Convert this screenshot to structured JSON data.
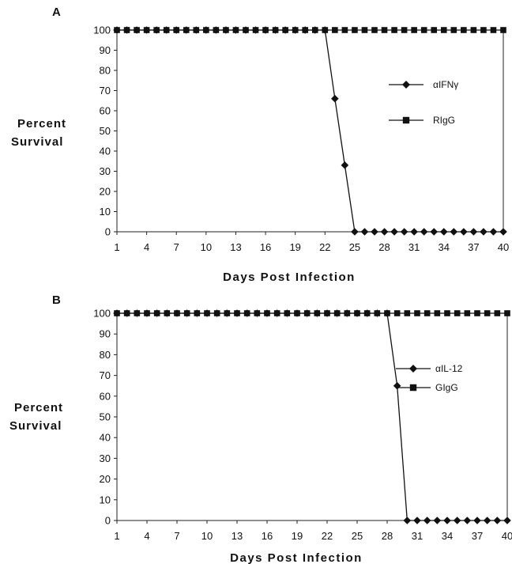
{
  "chart_data": [
    {
      "panel": "A",
      "type": "line",
      "xlabel": "Days Post Infection",
      "ylabel": [
        "Percent",
        "Survival"
      ],
      "xlim": [
        1,
        40
      ],
      "ylim": [
        0,
        100
      ],
      "xticks": [
        1,
        4,
        7,
        10,
        13,
        16,
        19,
        22,
        25,
        28,
        31,
        34,
        37,
        40
      ],
      "yticks": [
        0,
        10,
        20,
        30,
        40,
        50,
        60,
        70,
        80,
        90,
        100
      ],
      "legend_placement": "right",
      "series": [
        {
          "name": "αIFNγ",
          "marker": "diamond",
          "x": [
            1,
            2,
            3,
            4,
            5,
            6,
            7,
            8,
            9,
            10,
            11,
            12,
            13,
            14,
            15,
            16,
            17,
            18,
            19,
            20,
            21,
            22,
            23,
            24,
            25,
            26,
            27,
            28,
            29,
            30,
            31,
            32,
            33,
            34,
            35,
            36,
            37,
            38,
            39,
            40
          ],
          "y": [
            100,
            100,
            100,
            100,
            100,
            100,
            100,
            100,
            100,
            100,
            100,
            100,
            100,
            100,
            100,
            100,
            100,
            100,
            100,
            100,
            100,
            100,
            66,
            33,
            0,
            0,
            0,
            0,
            0,
            0,
            0,
            0,
            0,
            0,
            0,
            0,
            0,
            0,
            0,
            0
          ]
        },
        {
          "name": "RIgG",
          "marker": "square",
          "x": [
            1,
            2,
            3,
            4,
            5,
            6,
            7,
            8,
            9,
            10,
            11,
            12,
            13,
            14,
            15,
            16,
            17,
            18,
            19,
            20,
            21,
            22,
            23,
            24,
            25,
            26,
            27,
            28,
            29,
            30,
            31,
            32,
            33,
            34,
            35,
            36,
            37,
            38,
            39,
            40
          ],
          "y": [
            100,
            100,
            100,
            100,
            100,
            100,
            100,
            100,
            100,
            100,
            100,
            100,
            100,
            100,
            100,
            100,
            100,
            100,
            100,
            100,
            100,
            100,
            100,
            100,
            100,
            100,
            100,
            100,
            100,
            100,
            100,
            100,
            100,
            100,
            100,
            100,
            100,
            100,
            100,
            100
          ]
        }
      ]
    },
    {
      "panel": "B",
      "type": "line",
      "xlabel": "Days Post Infection",
      "ylabel": [
        "Percent",
        "Survival"
      ],
      "xlim": [
        1,
        40
      ],
      "ylim": [
        0,
        100
      ],
      "xticks": [
        1,
        4,
        7,
        10,
        13,
        16,
        19,
        22,
        25,
        28,
        31,
        34,
        37,
        40
      ],
      "yticks": [
        0,
        10,
        20,
        30,
        40,
        50,
        60,
        70,
        80,
        90,
        100
      ],
      "legend_placement": "right",
      "series": [
        {
          "name": "αIL-12",
          "marker": "diamond",
          "x": [
            1,
            2,
            3,
            4,
            5,
            6,
            7,
            8,
            9,
            10,
            11,
            12,
            13,
            14,
            15,
            16,
            17,
            18,
            19,
            20,
            21,
            22,
            23,
            24,
            25,
            26,
            27,
            28,
            29,
            30,
            31,
            32,
            33,
            34,
            35,
            36,
            37,
            38,
            39,
            40
          ],
          "y": [
            100,
            100,
            100,
            100,
            100,
            100,
            100,
            100,
            100,
            100,
            100,
            100,
            100,
            100,
            100,
            100,
            100,
            100,
            100,
            100,
            100,
            100,
            100,
            100,
            100,
            100,
            100,
            100,
            65,
            0,
            0,
            0,
            0,
            0,
            0,
            0,
            0,
            0,
            0,
            0
          ]
        },
        {
          "name": "GIgG",
          "marker": "square",
          "x": [
            1,
            2,
            3,
            4,
            5,
            6,
            7,
            8,
            9,
            10,
            11,
            12,
            13,
            14,
            15,
            16,
            17,
            18,
            19,
            20,
            21,
            22,
            23,
            24,
            25,
            26,
            27,
            28,
            29,
            30,
            31,
            32,
            33,
            34,
            35,
            36,
            37,
            38,
            39,
            40
          ],
          "y": [
            100,
            100,
            100,
            100,
            100,
            100,
            100,
            100,
            100,
            100,
            100,
            100,
            100,
            100,
            100,
            100,
            100,
            100,
            100,
            100,
            100,
            100,
            100,
            100,
            100,
            100,
            100,
            100,
            100,
            100,
            100,
            100,
            100,
            100,
            100,
            100,
            100,
            100,
            100,
            100
          ]
        }
      ]
    }
  ]
}
